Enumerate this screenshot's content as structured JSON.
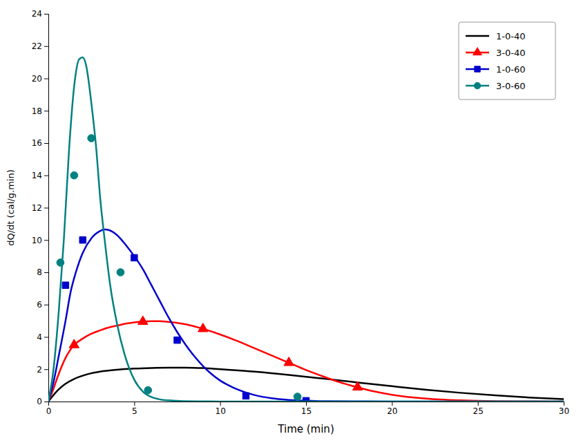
{
  "chart_data": {
    "type": "line",
    "xlabel": "Time (min)",
    "ylabel": "dQ/dt (cal/g.min)",
    "xlim": [
      0,
      30
    ],
    "ylim": [
      0,
      24
    ],
    "xticks": [
      0,
      5,
      10,
      15,
      20,
      25,
      30
    ],
    "yticks": [
      0,
      2,
      4,
      6,
      8,
      10,
      12,
      14,
      16,
      18,
      20,
      22,
      24
    ],
    "grid": false,
    "legend": "top-right",
    "series": [
      {
        "name": "1-0-40",
        "color": "#000000",
        "x": [
          0,
          0.3,
          0.6,
          1,
          1.5,
          2,
          2.5,
          3,
          4,
          5,
          6,
          7,
          8,
          9,
          10,
          12,
          14,
          16,
          18,
          20,
          22,
          24,
          26,
          28,
          30
        ],
        "values": [
          0,
          0.4,
          0.75,
          1.1,
          1.4,
          1.6,
          1.75,
          1.85,
          1.97,
          2.04,
          2.08,
          2.1,
          2.1,
          2.07,
          2.0,
          1.85,
          1.65,
          1.42,
          1.18,
          0.95,
          0.73,
          0.54,
          0.38,
          0.25,
          0.15
        ],
        "marker_x": [],
        "marker_y": []
      },
      {
        "name": "3-0-40",
        "color": "#ff0000",
        "marker": "triangle",
        "x": [
          0,
          0.3,
          0.6,
          1,
          1.5,
          2,
          2.5,
          3,
          3.5,
          4,
          4.5,
          5,
          5.5,
          6,
          6.5,
          7,
          7.5,
          8,
          8.5,
          9,
          10,
          11,
          12,
          13,
          14,
          15,
          16,
          17,
          18,
          19,
          20,
          22,
          24,
          26,
          28,
          30
        ],
        "values": [
          0,
          0.8,
          1.7,
          2.7,
          3.5,
          3.9,
          4.2,
          4.4,
          4.58,
          4.7,
          4.82,
          4.9,
          4.95,
          4.97,
          4.97,
          4.93,
          4.87,
          4.78,
          4.65,
          4.5,
          4.15,
          3.75,
          3.3,
          2.85,
          2.4,
          1.95,
          1.55,
          1.18,
          0.88,
          0.62,
          0.42,
          0.18,
          0.07,
          0.02,
          0.01,
          0.0
        ],
        "marker_x": [
          1.5,
          5.5,
          9.0,
          14.0,
          18.0
        ],
        "marker_y": [
          3.5,
          4.95,
          4.5,
          2.4,
          0.88
        ]
      },
      {
        "name": "1-0-60",
        "color": "#0000cc",
        "marker": "square",
        "x": [
          0,
          0.3,
          0.6,
          1,
          1.3,
          1.6,
          2,
          2.5,
          3,
          3.3,
          3.5,
          4,
          4.5,
          5,
          5.5,
          6,
          6.5,
          7,
          7.5,
          8,
          8.5,
          9,
          9.5,
          10,
          10.5,
          11,
          12,
          13,
          14,
          15,
          16,
          18,
          20,
          22,
          24,
          26,
          28,
          30
        ],
        "values": [
          0,
          1.2,
          2.8,
          5.0,
          6.8,
          8.0,
          9.2,
          10.1,
          10.55,
          10.65,
          10.62,
          10.3,
          9.7,
          9.0,
          8.2,
          7.2,
          6.2,
          5.2,
          4.3,
          3.5,
          2.8,
          2.2,
          1.7,
          1.3,
          1.0,
          0.75,
          0.4,
          0.2,
          0.1,
          0.05,
          0.02,
          0.01,
          0.0,
          0.0,
          0.0,
          0.0,
          0.0,
          0.0
        ],
        "marker_x": [
          1.0,
          2.0,
          5.0,
          7.5,
          11.5,
          15.0
        ],
        "marker_y": [
          7.2,
          10.0,
          8.9,
          3.8,
          0.35,
          0.05
        ]
      },
      {
        "name": "3-0-60",
        "color": "#008080",
        "marker": "circle",
        "x": [
          0,
          0.3,
          0.6,
          0.9,
          1.2,
          1.5,
          1.8,
          2.0,
          2.2,
          2.5,
          2.8,
          3.0,
          3.3,
          3.6,
          4.0,
          4.5,
          5.0,
          5.5,
          6.0,
          6.5,
          7.0,
          7.5,
          8.0,
          9.0,
          10.0,
          12.0,
          15.0,
          20.0,
          25.0,
          30.0
        ],
        "values": [
          0,
          2.0,
          5.5,
          10.0,
          15.5,
          19.5,
          21.2,
          21.3,
          20.8,
          18.5,
          15.5,
          12.8,
          9.8,
          7.2,
          4.8,
          2.7,
          1.35,
          0.62,
          0.28,
          0.13,
          0.07,
          0.04,
          0.02,
          0.01,
          0.0,
          0.0,
          0.0,
          0.0,
          0.0,
          0.0
        ],
        "marker_x": [
          0.7,
          1.5,
          2.5,
          4.2,
          5.8,
          14.5
        ],
        "marker_y": [
          8.6,
          14.0,
          16.3,
          8.0,
          0.7,
          0.3
        ]
      }
    ]
  }
}
